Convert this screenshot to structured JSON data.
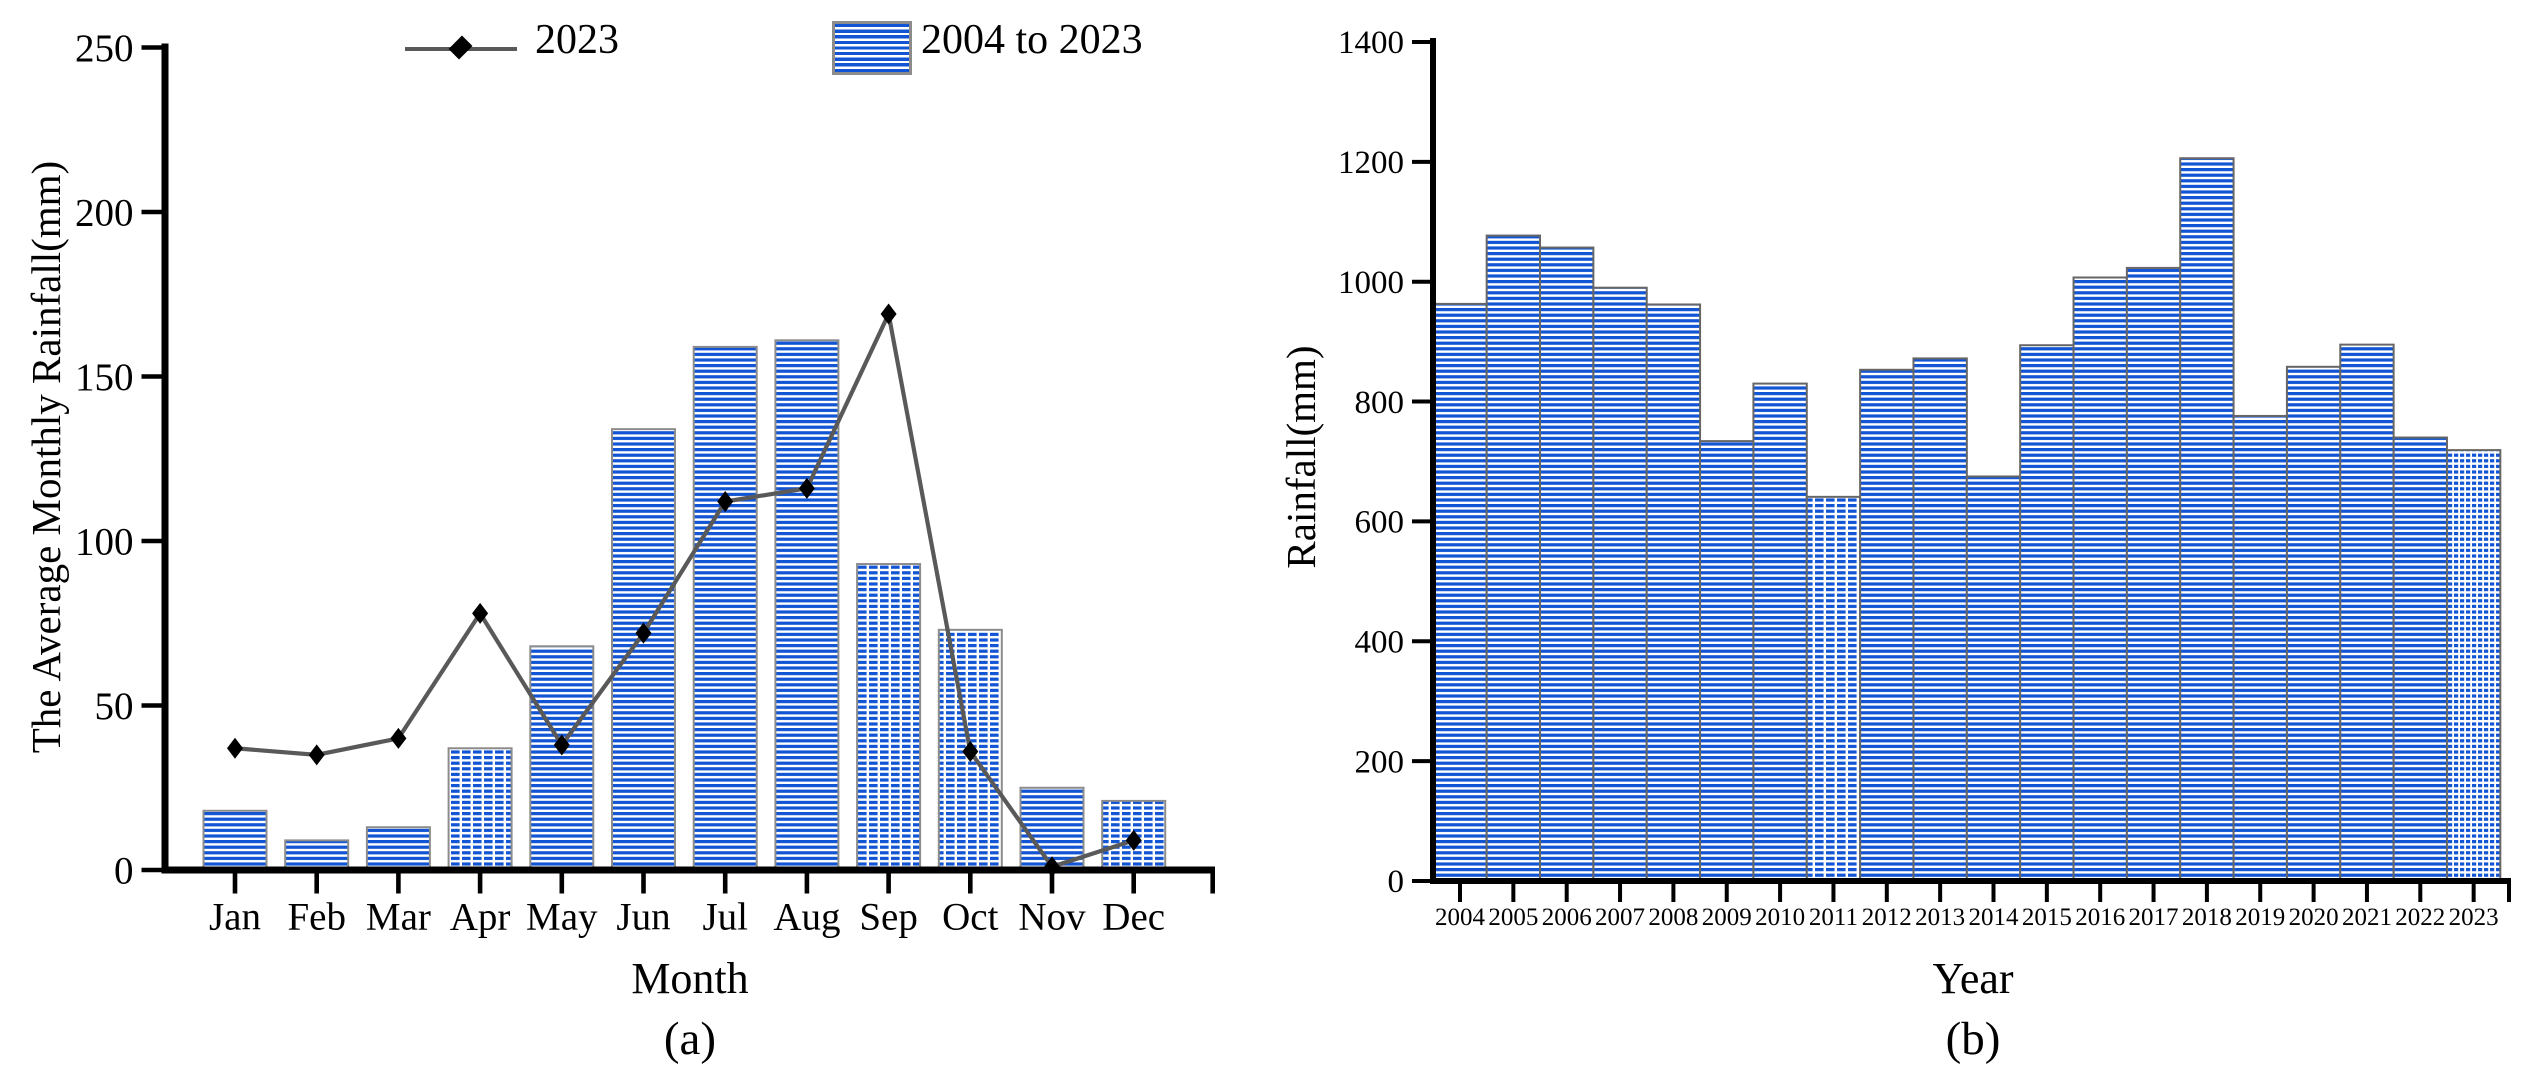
{
  "figure_type": "two-panel rainfall figure",
  "colors": {
    "bar_fill": "#1155d4",
    "bar_gap": "#ffffff",
    "bar_border_a": "#8c8c8c",
    "bar_border_b": "#666666",
    "line": "#595959",
    "marker": "#000000",
    "axis": "#000000"
  },
  "legend": {
    "line_label": "2023",
    "bar_label": "2004 to 2023"
  },
  "chart_data": [
    {
      "type": "bar",
      "panel": "a",
      "panel_label": "(a)",
      "xlabel": "Month",
      "ylabel": "The Average Monthly Rainfall(mm)",
      "categories": [
        "Jan",
        "Feb",
        "Mar",
        "Apr",
        "May",
        "Jun",
        "Jul",
        "Aug",
        "Sep",
        "Oct",
        "Nov",
        "Dec"
      ],
      "series": [
        {
          "name": "2004 to 2023",
          "type": "bar",
          "values": [
            18,
            9,
            13,
            37,
            68,
            134,
            159,
            161,
            93,
            73,
            25,
            21
          ]
        },
        {
          "name": "2023",
          "type": "line",
          "values": [
            37,
            35,
            40,
            78,
            38,
            72,
            112,
            116,
            169,
            36,
            1,
            9
          ]
        }
      ],
      "ylim": [
        0,
        250
      ],
      "yticks": [
        0,
        50,
        100,
        150,
        200,
        250
      ],
      "legend_position": "top",
      "grid": false,
      "dashed_bar_indices": [
        3,
        8,
        9,
        11
      ]
    },
    {
      "type": "bar",
      "panel": "b",
      "panel_label": "(b)",
      "xlabel": "Year",
      "ylabel": "Rainfall(mm)",
      "categories": [
        "2004",
        "2005",
        "2006",
        "2007",
        "2008",
        "2009",
        "2010",
        "2011",
        "2012",
        "2013",
        "2014",
        "2015",
        "2016",
        "2017",
        "2018",
        "2019",
        "2020",
        "2021",
        "2022",
        "2023"
      ],
      "values": [
        963,
        1077,
        1057,
        990,
        962,
        734,
        830,
        641,
        853,
        872,
        675,
        894,
        1007,
        1023,
        1206,
        776,
        858,
        895,
        740,
        719
      ],
      "ylim": [
        0,
        1400
      ],
      "yticks": [
        0,
        200,
        400,
        600,
        800,
        1000,
        1200,
        1400
      ],
      "grid": false,
      "dashed_bar_indices": [
        7,
        19
      ]
    }
  ]
}
